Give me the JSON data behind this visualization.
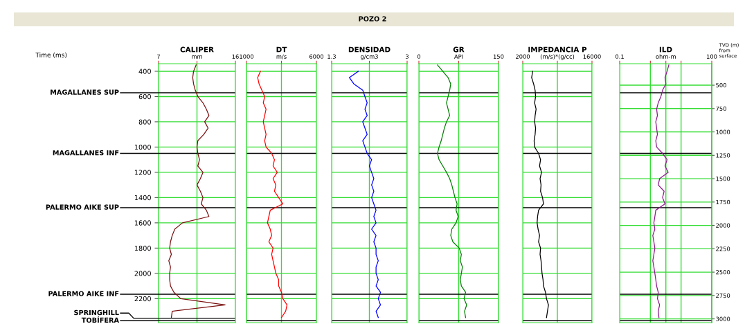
{
  "chart_data": [
    {
      "type": "line",
      "title": "CALIPER",
      "ylabel": "Time (ms)",
      "annotations": [
        "POZO 2"
      ],
      "xlim": [
        7,
        16
      ],
      "xticks": [
        7,
        {
          "value": 11.5,
          "label": "mm"
        },
        16
      ],
      "ylim": [
        2390,
        340
      ],
      "yticks": [
        400,
        600,
        800,
        1000,
        1200,
        1400,
        1600,
        1800,
        2000,
        2200
      ],
      "grid": true,
      "ref_lines": [
        {
          "axis": "y",
          "value": 570,
          "label": "MAGALLANES SUP",
          "color": "#000000"
        },
        {
          "axis": "y",
          "value": 1050,
          "label": "MAGALLANES INF",
          "color": "#000000"
        },
        {
          "axis": "y",
          "value": 1480,
          "label": "PALERMO AIKE SUP",
          "color": "#000000"
        },
        {
          "axis": "y",
          "value": 2165,
          "label": "PALERMO AIKE INF",
          "color": "#000000"
        },
        {
          "axis": "y",
          "value": 2355,
          "label": "SPRINGHILL",
          "color": "#000000"
        },
        {
          "axis": "y",
          "value": 2375,
          "label": "TOBÍFERA",
          "color": "#000000"
        }
      ],
      "series": [
        {
          "color": "#7b1010",
          "x": [
            11.4,
            11.1,
            11.0,
            11.1,
            11.3,
            11.6,
            12.2,
            12.6,
            12.9,
            12.4,
            12.8,
            12.3,
            11.6,
            11.5,
            11.6,
            11.8,
            11.6,
            12.2,
            11.9,
            11.5,
            11.9,
            12.2,
            12.0,
            12.6,
            12.9,
            9.8,
            8.9,
            8.6,
            8.4,
            8.3,
            8.5,
            8.2,
            8.4,
            8.3,
            8.3,
            8.4,
            8.8,
            9.6,
            14.8,
            8.6,
            8.5
          ],
          "values": [
            350,
            400,
            450,
            500,
            550,
            600,
            650,
            700,
            750,
            800,
            850,
            900,
            950,
            1000,
            1050,
            1100,
            1150,
            1200,
            1250,
            1300,
            1350,
            1400,
            1450,
            1500,
            1550,
            1600,
            1650,
            1700,
            1750,
            1800,
            1850,
            1900,
            1950,
            2000,
            2050,
            2100,
            2150,
            2200,
            2250,
            2300,
            2350
          ]
        }
      ]
    },
    {
      "type": "line",
      "title": "DT",
      "xlim": [
        1000,
        6000
      ],
      "xticks": [
        1000,
        {
          "value": 3500,
          "label": "m/s"
        },
        6000
      ],
      "ylim": [
        2390,
        340
      ],
      "yticks": [
        400,
        600,
        800,
        1000,
        1200,
        1400,
        1600,
        1800,
        2000,
        2200
      ],
      "grid": true,
      "tick_labels": "x",
      "ref_lines": [
        {
          "axis": "y",
          "value": 570,
          "color": "#000000"
        },
        {
          "axis": "y",
          "value": 1050,
          "color": "#000000"
        },
        {
          "axis": "y",
          "value": 1480,
          "color": "#000000"
        },
        {
          "axis": "y",
          "value": 2165,
          "color": "#000000"
        },
        {
          "axis": "y",
          "value": 2375,
          "color": "#000000"
        }
      ],
      "series": [
        {
          "color": "#ff0000",
          "x": [
            2000,
            1800,
            1900,
            2100,
            2300,
            2200,
            2400,
            2300,
            2200,
            2300,
            2400,
            2300,
            2400,
            2800,
            3000,
            2900,
            3200,
            2900,
            3100,
            3000,
            3300,
            3600,
            2700,
            2600,
            2500,
            2700,
            2800,
            2600,
            2900,
            2800,
            2900,
            3000,
            3100,
            3300,
            3300,
            3500,
            3600,
            3900,
            3800,
            3500
          ],
          "values": [
            400,
            450,
            500,
            550,
            600,
            650,
            700,
            750,
            800,
            850,
            900,
            950,
            1000,
            1050,
            1100,
            1150,
            1200,
            1250,
            1300,
            1350,
            1400,
            1450,
            1500,
            1550,
            1600,
            1650,
            1700,
            1750,
            1800,
            1850,
            1900,
            1950,
            2000,
            2050,
            2100,
            2150,
            2200,
            2250,
            2300,
            2350
          ]
        }
      ]
    },
    {
      "type": "line",
      "title": "DENSIDAD",
      "xlim": [
        1.3,
        3
      ],
      "xticks": [
        1.3,
        {
          "value": 2.15,
          "label": "g/cm3"
        },
        3
      ],
      "ylim": [
        2390,
        340
      ],
      "yticks": [
        400,
        600,
        800,
        1000,
        1200,
        1400,
        1600,
        1800,
        2000,
        2200
      ],
      "grid": true,
      "tick_labels": "x",
      "ref_lines": [
        {
          "axis": "y",
          "value": 570,
          "color": "#000000"
        },
        {
          "axis": "y",
          "value": 1050,
          "color": "#000000"
        },
        {
          "axis": "y",
          "value": 1480,
          "color": "#000000"
        },
        {
          "axis": "y",
          "value": 2165,
          "color": "#000000"
        },
        {
          "axis": "y",
          "value": 2375,
          "color": "#000000"
        }
      ],
      "series": [
        {
          "color": "#0000ff",
          "x": [
            1.9,
            1.7,
            1.8,
            2.0,
            2.05,
            2.1,
            2.05,
            2.1,
            2.0,
            2.05,
            2.1,
            2.0,
            2.05,
            2.1,
            2.2,
            2.15,
            2.2,
            2.25,
            2.2,
            2.25,
            2.2,
            2.25,
            2.3,
            2.25,
            2.3,
            2.2,
            2.3,
            2.25,
            2.3,
            2.3,
            2.35,
            2.3,
            2.3,
            2.35,
            2.3,
            2.4,
            2.35,
            2.4,
            2.3,
            2.35
          ],
          "values": [
            400,
            450,
            500,
            550,
            600,
            650,
            700,
            750,
            800,
            850,
            900,
            950,
            1000,
            1050,
            1100,
            1150,
            1200,
            1250,
            1300,
            1350,
            1400,
            1450,
            1500,
            1550,
            1600,
            1650,
            1700,
            1750,
            1800,
            1850,
            1900,
            1950,
            2000,
            2050,
            2100,
            2150,
            2200,
            2250,
            2300,
            2350
          ]
        }
      ]
    },
    {
      "type": "line",
      "title": "GR",
      "xlim": [
        0,
        150
      ],
      "xticks": [
        0,
        {
          "value": 75,
          "label": "API"
        },
        150
      ],
      "ylim": [
        2390,
        340
      ],
      "yticks": [
        400,
        600,
        800,
        1000,
        1200,
        1400,
        1600,
        1800,
        2000,
        2200
      ],
      "grid": true,
      "tick_labels": "x",
      "ref_lines": [
        {
          "axis": "y",
          "value": 570,
          "color": "#000000"
        },
        {
          "axis": "y",
          "value": 1050,
          "color": "#000000"
        },
        {
          "axis": "y",
          "value": 1480,
          "color": "#000000"
        },
        {
          "axis": "y",
          "value": 2165,
          "color": "#000000"
        },
        {
          "axis": "y",
          "value": 2375,
          "color": "#000000"
        }
      ],
      "series": [
        {
          "color": "#008000",
          "x": [
            35,
            45,
            55,
            60,
            58,
            55,
            52,
            55,
            58,
            52,
            48,
            45,
            42,
            38,
            35,
            38,
            45,
            52,
            58,
            62,
            65,
            68,
            72,
            70,
            74,
            70,
            62,
            60,
            64,
            76,
            80,
            78,
            82,
            80,
            78,
            80,
            88,
            85,
            90,
            86,
            88
          ],
          "values": [
            350,
            400,
            450,
            500,
            550,
            600,
            650,
            700,
            750,
            800,
            850,
            900,
            950,
            1000,
            1050,
            1100,
            1150,
            1200,
            1250,
            1300,
            1350,
            1400,
            1450,
            1500,
            1550,
            1600,
            1650,
            1700,
            1750,
            1800,
            1850,
            1900,
            1950,
            2000,
            2050,
            2100,
            2150,
            2200,
            2250,
            2300,
            2350
          ]
        }
      ]
    },
    {
      "type": "line",
      "title": "IMPEDANCIA P",
      "xlim": [
        2000,
        16000
      ],
      "xticks": [
        2000,
        {
          "value": 9000,
          "label": "(m/s)*(g/cc)"
        },
        16000
      ],
      "ylim": [
        2390,
        340
      ],
      "yticks": [
        400,
        600,
        800,
        1000,
        1200,
        1400,
        1600,
        1800,
        2000,
        2200
      ],
      "grid": true,
      "tick_labels": "x",
      "ref_lines": [
        {
          "axis": "y",
          "value": 570,
          "color": "#000000"
        },
        {
          "axis": "y",
          "value": 1050,
          "color": "#000000"
        },
        {
          "axis": "y",
          "value": 1480,
          "color": "#000000"
        },
        {
          "axis": "y",
          "value": 2165,
          "color": "#000000"
        },
        {
          "axis": "y",
          "value": 2375,
          "color": "#000000"
        }
      ],
      "series": [
        {
          "color": "#000000",
          "x": [
            4000,
            3800,
            4200,
            4500,
            4600,
            4400,
            4700,
            4500,
            4400,
            4600,
            4500,
            4300,
            4400,
            5200,
            5600,
            5400,
            5800,
            5500,
            5700,
            5600,
            6000,
            6200,
            5200,
            5000,
            4900,
            5100,
            5400,
            5200,
            5600,
            5500,
            5700,
            5800,
            5900,
            6100,
            6200,
            6600,
            6800,
            7200,
            7000,
            6800
          ],
          "values": [
            400,
            450,
            500,
            550,
            600,
            650,
            700,
            750,
            800,
            850,
            900,
            950,
            1000,
            1050,
            1100,
            1150,
            1200,
            1250,
            1300,
            1350,
            1400,
            1450,
            1500,
            1550,
            1600,
            1650,
            1700,
            1750,
            1800,
            1850,
            1900,
            1950,
            2000,
            2050,
            2100,
            2150,
            2200,
            2250,
            2300,
            2350
          ]
        }
      ]
    },
    {
      "type": "line",
      "title": "ILD",
      "log": "x",
      "xlim": [
        0.1,
        100
      ],
      "xticks": [
        0.1,
        {
          "value": 1,
          "label": null
        },
        {
          "value": 3.2,
          "label": "ohm-m"
        },
        {
          "value": 10,
          "label": null
        },
        100
      ],
      "ylim": [
        2390,
        340
      ],
      "grid": true,
      "y2label": "TVD (m)\nfrom\nsurface",
      "y2lim": [
        3040,
        270
      ],
      "y2ticks": [
        500,
        750,
        1000,
        1250,
        1500,
        1750,
        2000,
        2250,
        2500,
        2750,
        3000
      ],
      "ref_lines": [
        {
          "axis": "y",
          "value": 570,
          "color": "#000000"
        },
        {
          "axis": "y",
          "value": 1050,
          "color": "#000000"
        },
        {
          "axis": "y",
          "value": 1480,
          "color": "#000000"
        },
        {
          "axis": "y",
          "value": 2165,
          "color": "#000000"
        },
        {
          "axis": "y",
          "value": 2375,
          "color": "#000000"
        }
      ],
      "series": [
        {
          "color": "#8b1a8b",
          "x": [
            4,
            3.5,
            3,
            3.2,
            2.5,
            2.2,
            1.8,
            1.6,
            1.7,
            1.5,
            1.6,
            1.7,
            1.5,
            1.6,
            2.5,
            3.5,
            3.0,
            3.8,
            2.0,
            1.8,
            2.8,
            2.5,
            3.0,
            1.5,
            1.4,
            1.3,
            1.4,
            1.2,
            1.3,
            1.4,
            1.3,
            1.2,
            1.3,
            1.4,
            1.5,
            1.6,
            1.8,
            1.7,
            2.0,
            1.8,
            1.9
          ],
          "values": [
            350,
            400,
            450,
            500,
            550,
            600,
            650,
            700,
            750,
            800,
            850,
            900,
            950,
            1000,
            1050,
            1100,
            1150,
            1200,
            1250,
            1300,
            1350,
            1400,
            1450,
            1500,
            1550,
            1600,
            1650,
            1700,
            1750,
            1800,
            1850,
            1900,
            1950,
            2000,
            2050,
            2100,
            2150,
            2200,
            2250,
            2300,
            2350
          ]
        }
      ]
    }
  ]
}
